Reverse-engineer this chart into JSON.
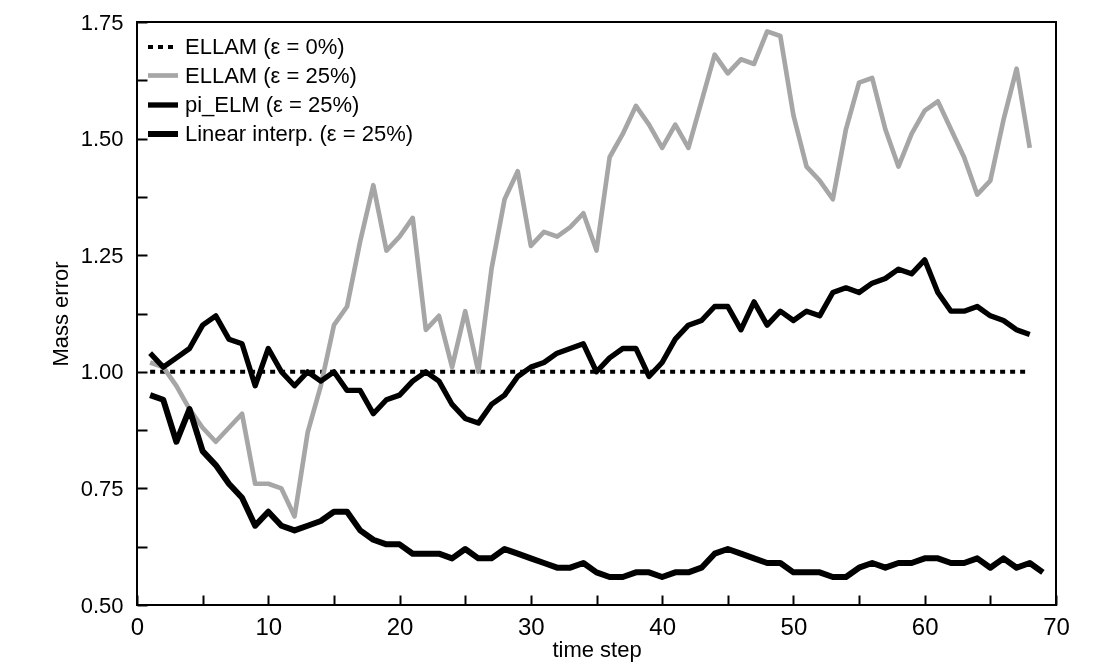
{
  "chart_data": {
    "type": "line",
    "xlabel": "time step",
    "ylabel": "Mass error",
    "legend": "top left",
    "grid": false,
    "xlim": [
      0,
      70
    ],
    "xticks": [
      0,
      {
        "value": 5,
        "label": null
      },
      10,
      {
        "value": 15,
        "label": null
      },
      20,
      {
        "value": 25,
        "label": null
      },
      30,
      {
        "value": 35,
        "label": null
      },
      40,
      {
        "value": 45,
        "label": null
      },
      50,
      {
        "value": 55,
        "label": null
      },
      60,
      {
        "value": 65,
        "label": null
      },
      70
    ],
    "ylim": [
      0.5,
      1.75
    ],
    "yticks": [
      {
        "value": 0.5,
        "label": "0.50"
      },
      {
        "value": 0.625,
        "label": null
      },
      {
        "value": 0.75,
        "label": "0.75"
      },
      {
        "value": 0.875,
        "label": null
      },
      {
        "value": 1.0,
        "label": "1.00"
      },
      {
        "value": 1.125,
        "label": null
      },
      {
        "value": 1.25,
        "label": "1.25"
      },
      {
        "value": 1.375,
        "label": null
      },
      {
        "value": 1.5,
        "label": "1.50"
      },
      {
        "value": 1.625,
        "label": null
      },
      {
        "value": 1.75,
        "label": "1.75"
      }
    ],
    "series": [
      {
        "name": "ELLAM (ε = 0%)",
        "color": "#000000",
        "line_style": "dotted",
        "x": [
          1,
          68
        ],
        "values": [
          1.0,
          1.0
        ]
      },
      {
        "name": "ELLAM (ε = 25%)",
        "color": "#a6a6a6",
        "line_style": "solid",
        "x": [
          1,
          2,
          3,
          4,
          5,
          6,
          7,
          8,
          9,
          10,
          11,
          12,
          13,
          14,
          15,
          16,
          17,
          18,
          19,
          20,
          21,
          22,
          23,
          24,
          25,
          26,
          27,
          28,
          29,
          30,
          31,
          32,
          33,
          34,
          35,
          36,
          37,
          38,
          39,
          40,
          41,
          42,
          43,
          44,
          45,
          46,
          47,
          48,
          49,
          50,
          51,
          52,
          53,
          54,
          55,
          56,
          57,
          58,
          59,
          60,
          61,
          62,
          63,
          64,
          65,
          66,
          67,
          68
        ],
        "values": [
          1.02,
          1.01,
          0.97,
          0.92,
          0.88,
          0.85,
          0.88,
          0.91,
          0.76,
          0.76,
          0.75,
          0.69,
          0.87,
          0.97,
          1.1,
          1.14,
          1.28,
          1.4,
          1.26,
          1.29,
          1.33,
          1.09,
          1.12,
          1.01,
          1.13,
          1.0,
          1.22,
          1.37,
          1.43,
          1.27,
          1.3,
          1.29,
          1.31,
          1.34,
          1.26,
          1.46,
          1.51,
          1.57,
          1.53,
          1.48,
          1.53,
          1.48,
          1.58,
          1.68,
          1.64,
          1.67,
          1.66,
          1.73,
          1.72,
          1.55,
          1.44,
          1.41,
          1.37,
          1.52,
          1.62,
          1.63,
          1.52,
          1.44,
          1.51,
          1.56,
          1.58,
          1.52,
          1.46,
          1.38,
          1.41,
          1.54,
          1.65,
          1.48
        ]
      },
      {
        "name": "pi_ELM (ε = 25%)",
        "color": "#000000",
        "line_style": "solid",
        "x": [
          1,
          2,
          3,
          4,
          5,
          6,
          7,
          8,
          9,
          10,
          11,
          12,
          13,
          14,
          15,
          16,
          17,
          18,
          19,
          20,
          21,
          22,
          23,
          24,
          25,
          26,
          27,
          28,
          29,
          30,
          31,
          32,
          33,
          34,
          35,
          36,
          37,
          38,
          39,
          40,
          41,
          42,
          43,
          44,
          45,
          46,
          47,
          48,
          49,
          50,
          51,
          52,
          53,
          54,
          55,
          56,
          57,
          58,
          59,
          60,
          61,
          62,
          63,
          64,
          65,
          66,
          67,
          68
        ],
        "values": [
          1.04,
          1.01,
          1.03,
          1.05,
          1.1,
          1.12,
          1.07,
          1.06,
          0.97,
          1.05,
          1.0,
          0.97,
          1.0,
          0.98,
          1.0,
          0.96,
          0.96,
          0.91,
          0.94,
          0.95,
          0.98,
          1.0,
          0.98,
          0.93,
          0.9,
          0.89,
          0.93,
          0.95,
          0.99,
          1.01,
          1.02,
          1.04,
          1.05,
          1.06,
          1.0,
          1.03,
          1.05,
          1.05,
          0.99,
          1.02,
          1.07,
          1.1,
          1.11,
          1.14,
          1.14,
          1.09,
          1.15,
          1.1,
          1.13,
          1.11,
          1.13,
          1.12,
          1.17,
          1.18,
          1.17,
          1.19,
          1.2,
          1.22,
          1.21,
          1.24,
          1.17,
          1.13,
          1.13,
          1.14,
          1.12,
          1.11,
          1.09,
          1.08
        ]
      },
      {
        "name": "Linear interp. (ε = 25%)",
        "color": "#000000",
        "line_style": "solid",
        "x": [
          1,
          2,
          3,
          4,
          5,
          6,
          7,
          8,
          9,
          10,
          11,
          12,
          13,
          14,
          15,
          16,
          17,
          18,
          19,
          20,
          21,
          22,
          23,
          24,
          25,
          26,
          27,
          28,
          29,
          30,
          31,
          32,
          33,
          34,
          35,
          36,
          37,
          38,
          39,
          40,
          41,
          42,
          43,
          44,
          45,
          46,
          47,
          48,
          49,
          50,
          51,
          52,
          53,
          54,
          55,
          56,
          57,
          58,
          59,
          60,
          61,
          62,
          63,
          64,
          65,
          66,
          67,
          68,
          69
        ],
        "values": [
          0.95,
          0.94,
          0.85,
          0.92,
          0.83,
          0.8,
          0.76,
          0.73,
          0.67,
          0.7,
          0.67,
          0.66,
          0.67,
          0.68,
          0.7,
          0.7,
          0.66,
          0.64,
          0.63,
          0.63,
          0.61,
          0.61,
          0.61,
          0.6,
          0.62,
          0.6,
          0.6,
          0.62,
          0.61,
          0.6,
          0.59,
          0.58,
          0.58,
          0.59,
          0.57,
          0.56,
          0.56,
          0.57,
          0.57,
          0.56,
          0.57,
          0.57,
          0.58,
          0.61,
          0.62,
          0.61,
          0.6,
          0.59,
          0.59,
          0.57,
          0.57,
          0.57,
          0.56,
          0.56,
          0.58,
          0.59,
          0.58,
          0.59,
          0.59,
          0.6,
          0.6,
          0.59,
          0.59,
          0.6,
          0.58,
          0.6,
          0.58,
          0.59,
          0.57
        ]
      }
    ]
  }
}
